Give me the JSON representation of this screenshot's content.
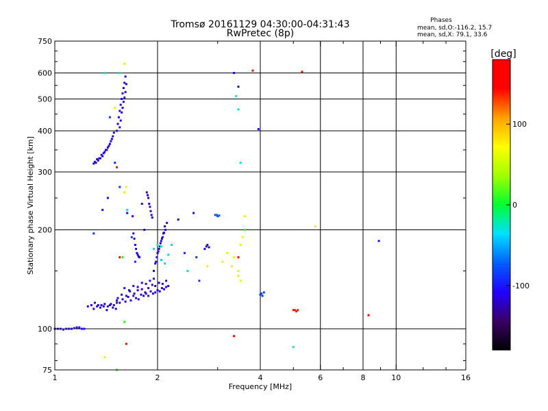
{
  "chart_data": {
    "type": "scatter",
    "title": "Tromsø 20161129 04:30:00-04:31:43",
    "subtitle": "RwPretec (8p)",
    "stats": {
      "heading": "Phases",
      "line1": "mean, sd,O:-116.2, 15.7",
      "line2": "mean, sd,X:  79.1, 33.6"
    },
    "xlabel": "Frequency [MHz]",
    "ylabel": "Stationary phase Virtual Height [km]",
    "x_scale": "log",
    "y_scale": "log",
    "xlim": [
      1,
      16
    ],
    "ylim": [
      75,
      750
    ],
    "x_ticks": [
      1,
      2,
      4,
      6,
      8,
      10,
      16
    ],
    "x_tick_labels": [
      "1",
      "2",
      "4",
      "6",
      "8",
      "10",
      "16"
    ],
    "x_minor_ticks": [
      3,
      5,
      7,
      9,
      12,
      14
    ],
    "y_ticks": [
      75,
      100,
      200,
      300,
      400,
      500,
      600,
      750
    ],
    "y_tick_labels": [
      "75",
      "100",
      "200",
      "300",
      "400",
      "500",
      "600",
      "750"
    ],
    "y_minor_ticks": [
      80,
      90,
      150,
      250,
      350,
      450,
      550,
      650,
      700
    ],
    "grid": true,
    "grid_x": [
      2,
      4,
      6,
      8,
      10
    ],
    "grid_y": [
      100,
      200,
      300,
      400,
      500,
      600
    ],
    "colorbar": {
      "label": "[deg]",
      "range": [
        -180,
        180
      ],
      "ticks": [
        -100,
        0,
        100
      ],
      "tick_labels": [
        "-100",
        "0",
        "100"
      ],
      "colors": [
        "#000000",
        "#3a0066",
        "#2000ff",
        "#0060ff",
        "#00e0ff",
        "#00ff30",
        "#a0ff00",
        "#ffff00",
        "#ffa000",
        "#ff0000",
        "#ff0000"
      ]
    },
    "point_series": [
      {
        "x": [
          1.0,
          1.02,
          1.04,
          1.06,
          1.08,
          1.1,
          1.12,
          1.14,
          1.16,
          1.18,
          1.2,
          1.22
        ],
        "y": [
          100,
          100,
          100,
          99.5,
          100,
          100,
          100,
          100.5,
          101,
          101,
          100,
          100
        ],
        "phase": -110
      },
      {
        "x": [
          1.25,
          1.28,
          1.31,
          1.34,
          1.37,
          1.4,
          1.43,
          1.46,
          1.49,
          1.52
        ],
        "y": [
          117,
          118,
          120,
          118,
          118,
          119,
          117,
          119,
          118,
          120
        ],
        "phase": -115
      },
      {
        "x": [
          1.3,
          1.33,
          1.36,
          1.39,
          1.42,
          1.45,
          1.48,
          1.51
        ],
        "y": [
          115,
          117,
          116,
          117,
          114,
          118,
          116,
          115
        ],
        "phase": -120
      },
      {
        "x": [
          1.52,
          1.55,
          1.58,
          1.61,
          1.64,
          1.67,
          1.7,
          1.73,
          1.76,
          1.79,
          1.82,
          1.85,
          1.88,
          1.91,
          1.94,
          1.97,
          2.0,
          2.03,
          2.06,
          2.09,
          2.12,
          2.15
        ],
        "y": [
          122,
          120,
          123,
          121,
          125,
          122,
          126,
          124,
          123,
          127,
          126,
          128,
          126,
          130,
          128,
          129,
          131,
          130,
          133,
          132,
          134,
          135
        ],
        "phase": -112
      },
      {
        "x": [
          1.53,
          1.57,
          1.62,
          1.66,
          1.71,
          1.75,
          1.8,
          1.84,
          1.88,
          1.93,
          1.97,
          2.02,
          2.07,
          2.12
        ],
        "y": [
          124,
          127,
          126,
          130,
          128,
          131,
          132,
          129,
          133,
          136,
          135,
          138,
          137,
          140
        ],
        "phase": -118
      },
      {
        "x": [
          1.6,
          1.65,
          1.7,
          1.75,
          1.8,
          1.85,
          1.9,
          1.95
        ],
        "y": [
          133,
          131,
          135,
          134,
          138,
          137,
          140,
          142
        ],
        "phase": -105
      },
      {
        "x": [
          1.3,
          1.32,
          1.34,
          1.36,
          1.38,
          1.4,
          1.42,
          1.44,
          1.46,
          1.48
        ],
        "y": [
          318,
          320,
          325,
          330,
          335,
          345,
          350,
          360,
          372,
          385
        ],
        "phase": -112
      },
      {
        "x": [
          1.31,
          1.33,
          1.35,
          1.37,
          1.39,
          1.41,
          1.43,
          1.45,
          1.47,
          1.49
        ],
        "y": [
          322,
          328,
          330,
          338,
          342,
          350,
          356,
          365,
          378,
          395
        ],
        "phase": -120
      },
      {
        "x": [
          1.52,
          1.53,
          1.54,
          1.55,
          1.56,
          1.57,
          1.58,
          1.59,
          1.6,
          1.61
        ],
        "y": [
          400,
          420,
          440,
          460,
          480,
          500,
          520,
          540,
          560,
          585
        ],
        "phase": -115
      },
      {
        "x": [
          1.55,
          1.56,
          1.57,
          1.58,
          1.59,
          1.6,
          1.61,
          1.62
        ],
        "y": [
          410,
          430,
          455,
          470,
          490,
          505,
          525,
          555
        ],
        "phase": -108
      },
      {
        "x": [
          1.7,
          1.71,
          1.72,
          1.73,
          1.74,
          1.75,
          1.76,
          1.77
        ],
        "y": [
          195,
          188,
          180,
          175,
          170,
          168,
          166,
          165
        ],
        "phase": -115
      },
      {
        "x": [
          1.86,
          1.87,
          1.88,
          1.89,
          1.9,
          1.91,
          1.92,
          1.93
        ],
        "y": [
          260,
          255,
          250,
          240,
          235,
          228,
          222,
          218
        ],
        "phase": -120
      },
      {
        "x": [
          1.95,
          1.97,
          1.99,
          2.01,
          2.03,
          2.05,
          2.07,
          2.09,
          2.11,
          2.13
        ],
        "y": [
          150,
          158,
          165,
          172,
          178,
          185,
          190,
          196,
          200,
          210
        ],
        "phase": -112
      },
      {
        "x": [
          1.98,
          2.0,
          2.02,
          2.04,
          2.06,
          2.08,
          2.1
        ],
        "y": [
          160,
          170,
          175,
          182,
          188,
          195,
          205
        ],
        "phase": -125
      },
      {
        "x": [
          1.95,
          2.0,
          2.05
        ],
        "y": [
          175,
          180,
          178
        ],
        "phase": -20
      },
      {
        "x": [
          2.05,
          2.1,
          2.15
        ],
        "y": [
          162,
          158,
          168
        ],
        "phase": -40
      },
      {
        "x": [
          2.75,
          2.78,
          2.8,
          2.83
        ],
        "y": [
          175,
          178,
          180,
          177
        ],
        "phase": -118
      },
      {
        "x": [
          2.95,
          2.98,
          3.0,
          3.03
        ],
        "y": [
          222,
          222,
          220,
          221
        ],
        "phase": -75
      },
      {
        "x": [
          4.0,
          4.03,
          4.06,
          4.1
        ],
        "y": [
          127,
          128,
          126,
          129
        ],
        "phase": -85
      },
      {
        "x": [
          5.0,
          5.05,
          5.1,
          5.15
        ],
        "y": [
          114,
          114,
          113,
          114
        ],
        "phase": 140
      },
      {
        "x": [
          1.38,
          1.43,
          1.63,
          1.69,
          1.8,
          1.83,
          2.3,
          2.55,
          3.35,
          3.45,
          3.95,
          8.9
        ],
        "y": [
          230,
          250,
          225,
          220,
          240,
          200,
          215,
          225,
          600,
          545,
          405,
          185
        ],
        "phase": -118
      },
      {
        "x": [
          1.4,
          1.55,
          1.63,
          2.2,
          2.45,
          3.4,
          3.45,
          3.5,
          5.0
        ],
        "y": [
          600,
          600,
          230,
          180,
          150,
          510,
          465,
          320,
          88
        ],
        "phase": -30
      },
      {
        "x": [
          1.5,
          1.6,
          1.62,
          3.1,
          3.2,
          3.35,
          3.45,
          3.45,
          3.5,
          3.55,
          3.5
        ],
        "y": [
          470,
          640,
          270,
          160,
          170,
          165,
          150,
          145,
          140,
          190,
          180
        ],
        "phase": 60
      },
      {
        "x": [
          1.55,
          1.58,
          1.62,
          1.52,
          3.35,
          3.45,
          3.8,
          5.3,
          8.3
        ],
        "y": [
          165,
          165,
          90,
          310,
          95,
          165,
          610,
          605,
          110
        ],
        "phase": 145
      },
      {
        "x": [
          1.6,
          1.4,
          2.8,
          3.3,
          3.6,
          5.8
        ],
        "y": [
          260,
          82,
          155,
          155,
          220,
          205
        ],
        "phase": 80
      },
      {
        "x": [
          1.3,
          1.45,
          1.5,
          1.55,
          1.68,
          1.72,
          2.4,
          2.6,
          2.65
        ],
        "y": [
          195,
          440,
          320,
          270,
          190,
          160,
          170,
          165,
          140
        ],
        "phase": -90
      },
      {
        "x": [
          1.6,
          1.58,
          1.52,
          3.6
        ],
        "y": [
          105,
          165,
          75,
          200
        ],
        "phase": 10
      }
    ]
  }
}
